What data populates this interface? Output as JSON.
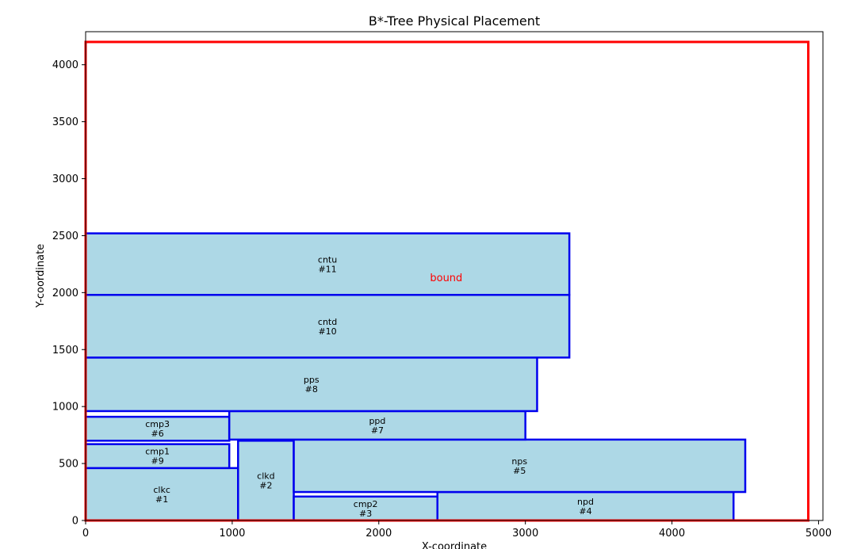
{
  "chart_data": {
    "type": "placement",
    "title": "B*-Tree Physical Placement",
    "xlabel": "X-coordinate",
    "ylabel": "Y-coordinate",
    "xlim": [
      0,
      5030
    ],
    "ylim": [
      0,
      4290
    ],
    "xticks": [
      0,
      1000,
      2000,
      3000,
      4000,
      5000
    ],
    "yticks": [
      0,
      500,
      1000,
      1500,
      2000,
      2500,
      3000,
      3500,
      4000
    ],
    "grid": false,
    "bound": {
      "label": "bound",
      "x": 0,
      "y": 0,
      "width": 4930,
      "height": 4200,
      "color": "#ff0000",
      "label_x": 2460,
      "label_y": 2100
    },
    "block_fill": "#add8e6",
    "block_edge": "#0000ee",
    "blocks": [
      {
        "name": "clkc",
        "id": "#1",
        "x": 0,
        "y": 0,
        "width": 1040,
        "height": 460
      },
      {
        "name": "clkd",
        "id": "#2",
        "x": 1040,
        "y": 0,
        "width": 380,
        "height": 700
      },
      {
        "name": "cmp2",
        "id": "#3",
        "x": 1420,
        "y": 0,
        "width": 980,
        "height": 210
      },
      {
        "name": "npd",
        "id": "#4",
        "x": 2400,
        "y": 0,
        "width": 2020,
        "height": 250
      },
      {
        "name": "nps",
        "id": "#5",
        "x": 1420,
        "y": 250,
        "width": 3080,
        "height": 460
      },
      {
        "name": "cmp3",
        "id": "#6",
        "x": 0,
        "y": 700,
        "width": 980,
        "height": 210
      },
      {
        "name": "ppd",
        "id": "#7",
        "x": 980,
        "y": 710,
        "width": 2020,
        "height": 250
      },
      {
        "name": "pps",
        "id": "#8",
        "x": 0,
        "y": 960,
        "width": 3080,
        "height": 470
      },
      {
        "name": "cmp1",
        "id": "#9",
        "x": 0,
        "y": 460,
        "width": 980,
        "height": 210
      },
      {
        "name": "cntd",
        "id": "#10",
        "x": 0,
        "y": 1430,
        "width": 3300,
        "height": 550
      },
      {
        "name": "cntu",
        "id": "#11",
        "x": 0,
        "y": 1980,
        "width": 3300,
        "height": 540
      }
    ]
  }
}
